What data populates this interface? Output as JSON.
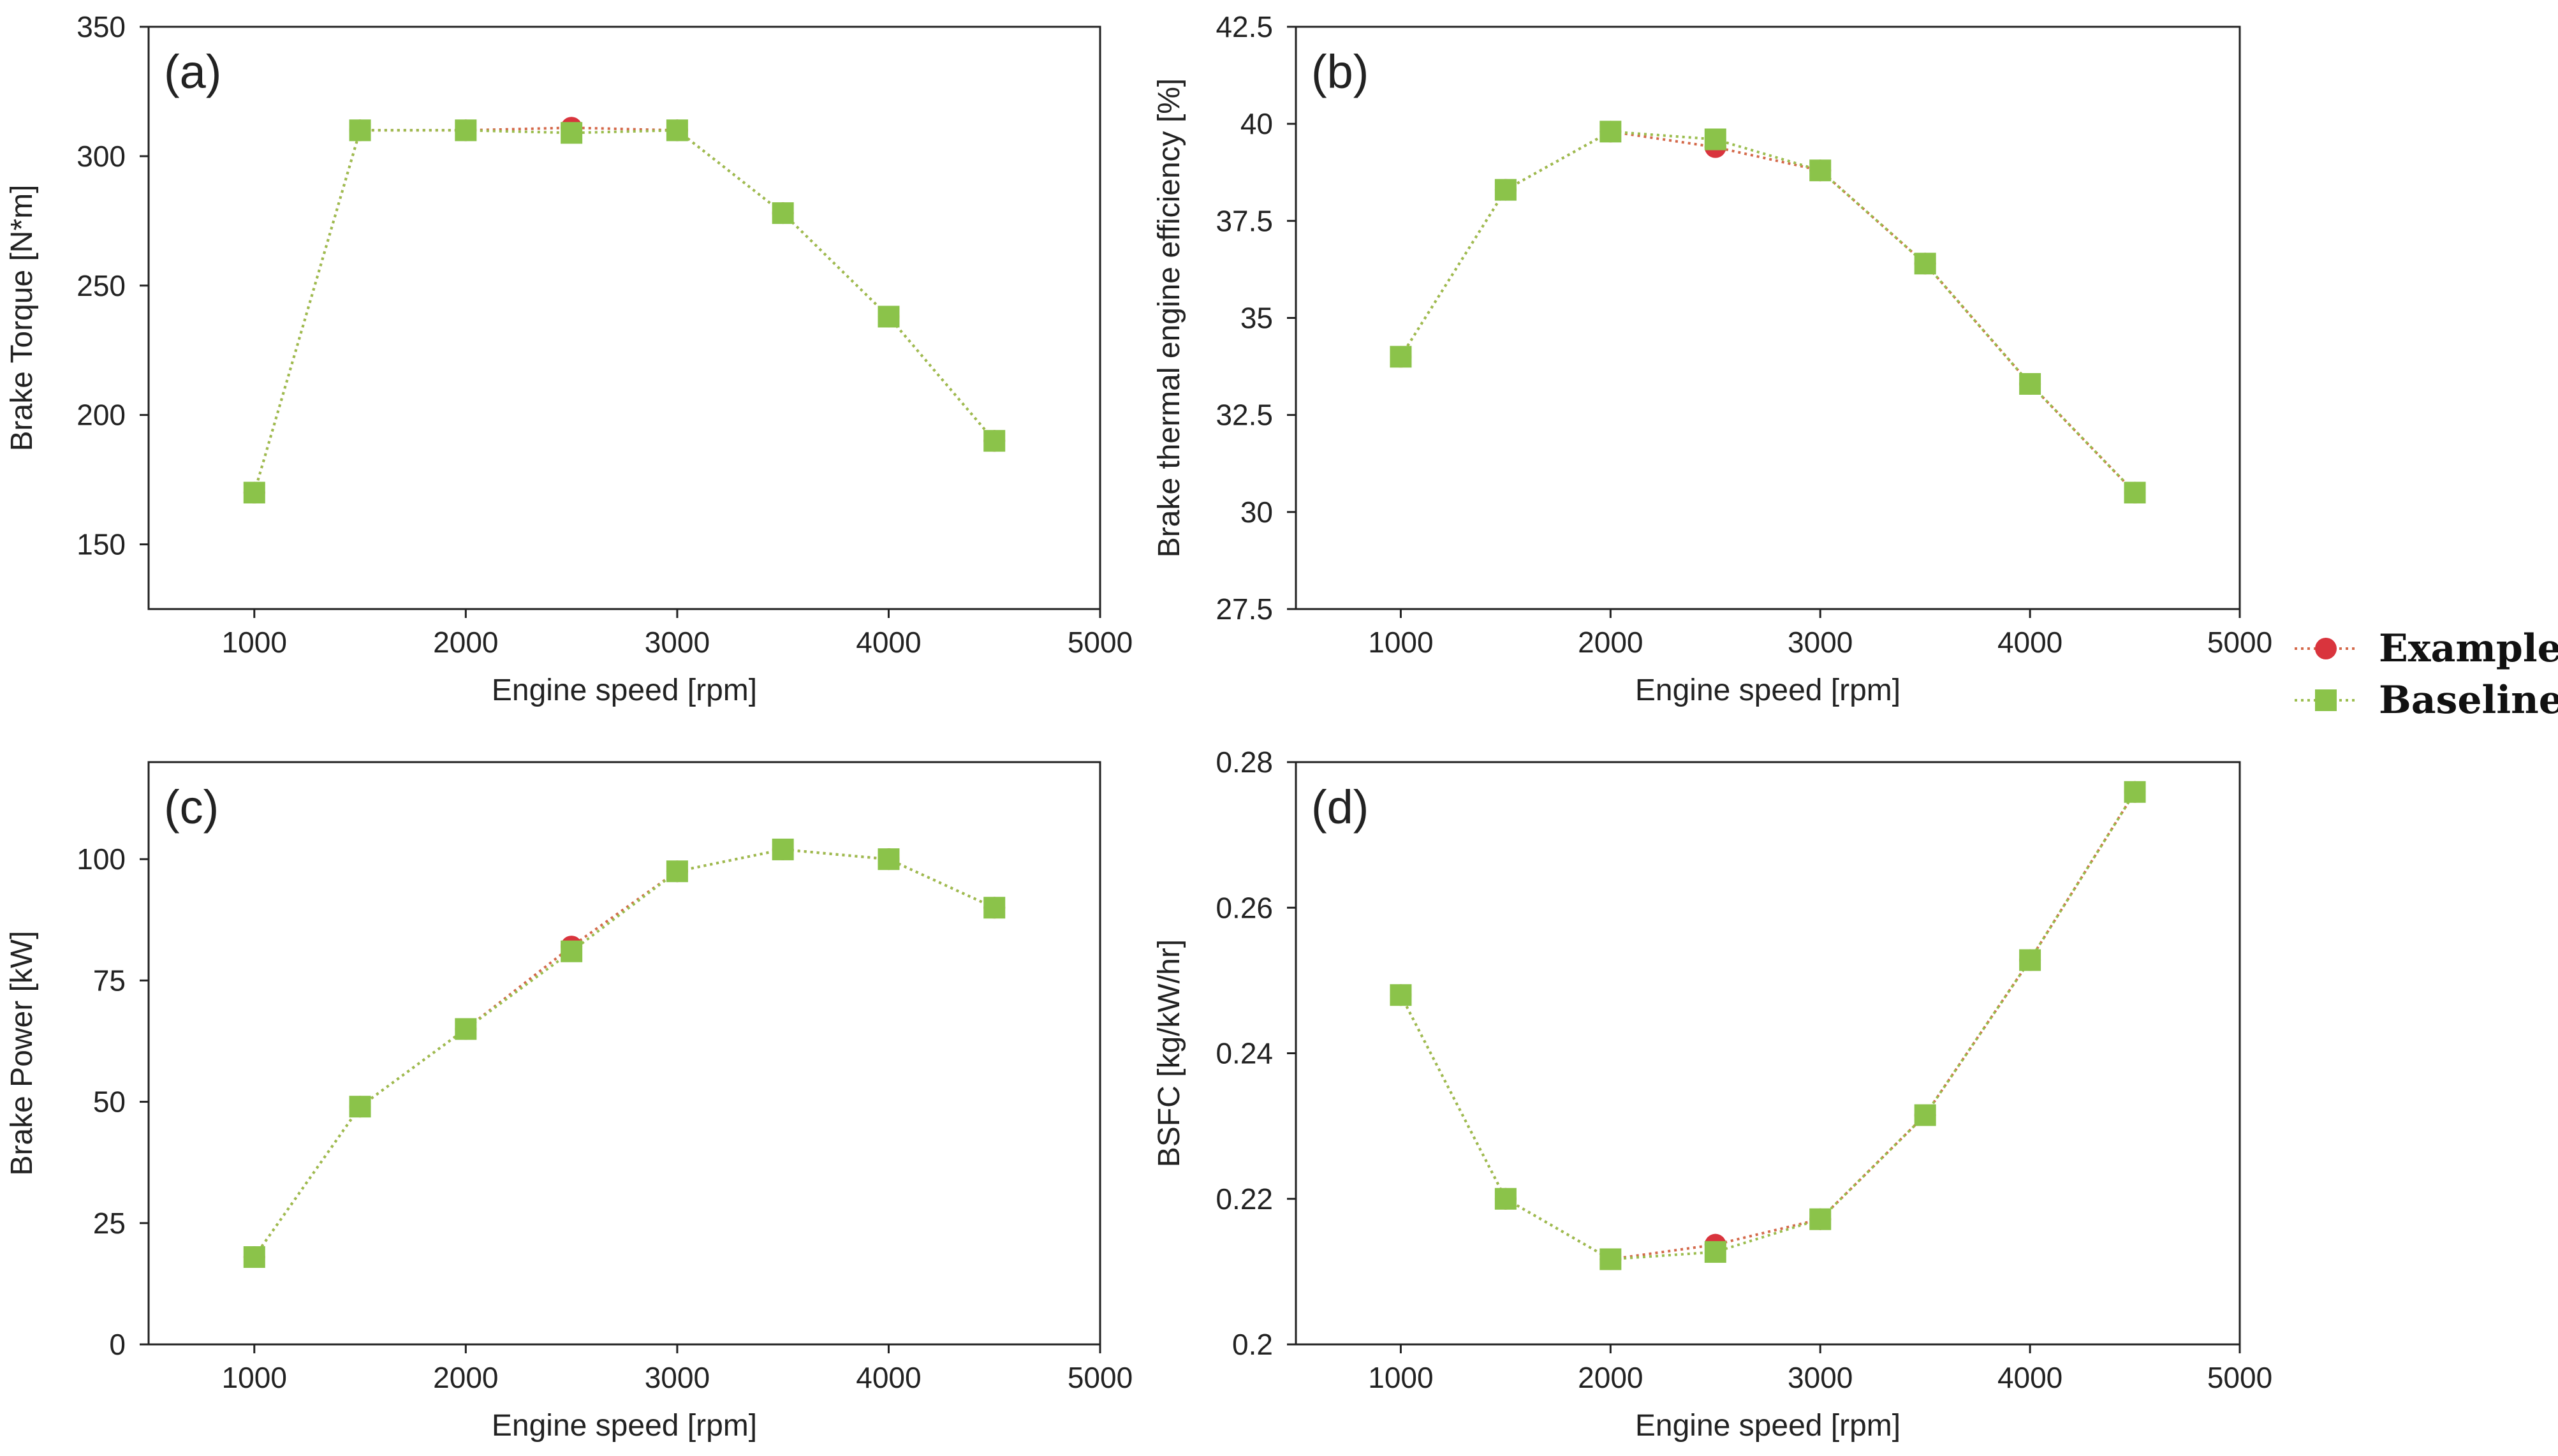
{
  "legend": {
    "example_label": "Example",
    "baseline_label": "Baseline"
  },
  "colors": {
    "example": "#d9343d",
    "baseline": "#8bc34a",
    "example_line": "#d4694a",
    "baseline_line": "#9bbd4e",
    "axis": "#222222"
  },
  "chart_data": [
    {
      "type": "line",
      "panel": "(a)",
      "title": "",
      "xlabel": "Engine speed [rpm]",
      "ylabel": "Brake Torque [N*m]",
      "xlim": [
        500,
        5000
      ],
      "ylim": [
        125,
        350
      ],
      "xticks": [
        1000,
        2000,
        3000,
        4000,
        5000
      ],
      "xtick_labels": [
        "1000",
        "2000",
        "3000",
        "4000",
        "5000"
      ],
      "yticks": [
        150,
        200,
        250,
        300,
        350
      ],
      "ytick_labels": [
        "150",
        "200",
        "250",
        "300",
        "350"
      ],
      "x": [
        1000,
        1500,
        2000,
        2500,
        3000,
        3500,
        4000,
        4500
      ],
      "series": [
        {
          "name": "Example",
          "values": [
            170,
            310,
            310,
            311,
            310,
            278,
            238,
            190
          ]
        },
        {
          "name": "Baseline",
          "values": [
            170,
            310,
            310,
            309,
            310,
            278,
            238,
            190
          ]
        }
      ]
    },
    {
      "type": "line",
      "panel": "(b)",
      "title": "",
      "xlabel": "Engine speed [rpm]",
      "ylabel": "Brake thermal engine efficiency [%]",
      "xlim": [
        500,
        5000
      ],
      "ylim": [
        27.5,
        42.5
      ],
      "xticks": [
        1000,
        2000,
        3000,
        4000,
        5000
      ],
      "xtick_labels": [
        "1000",
        "2000",
        "3000",
        "4000",
        "5000"
      ],
      "yticks": [
        27.5,
        30,
        32.5,
        35,
        37.5,
        40,
        42.5
      ],
      "ytick_labels": [
        "27.5",
        "30",
        "32.5",
        "35",
        "37.5",
        "40",
        "42.5"
      ],
      "x": [
        1000,
        1500,
        2000,
        2500,
        3000,
        3500,
        4000,
        4500
      ],
      "series": [
        {
          "name": "Example",
          "values": [
            34.0,
            38.3,
            39.8,
            39.4,
            38.8,
            36.4,
            33.3,
            30.5
          ]
        },
        {
          "name": "Baseline",
          "values": [
            34.0,
            38.3,
            39.8,
            39.6,
            38.8,
            36.4,
            33.3,
            30.5
          ]
        }
      ]
    },
    {
      "type": "line",
      "panel": "(c)",
      "title": "",
      "xlabel": "Engine speed [rpm]",
      "ylabel": "Brake Power [kW]",
      "xlim": [
        500,
        5000
      ],
      "ylim": [
        0,
        120
      ],
      "xticks": [
        1000,
        2000,
        3000,
        4000,
        5000
      ],
      "xtick_labels": [
        "1000",
        "2000",
        "3000",
        "4000",
        "5000"
      ],
      "yticks": [
        0,
        25,
        50,
        75,
        100
      ],
      "ytick_labels": [
        "0",
        "25",
        "50",
        "75",
        "100"
      ],
      "x": [
        1000,
        1500,
        2000,
        2500,
        3000,
        3500,
        4000,
        4500
      ],
      "series": [
        {
          "name": "Example",
          "values": [
            18,
            49,
            65,
            82,
            97.5,
            102,
            100,
            90
          ]
        },
        {
          "name": "Baseline",
          "values": [
            18,
            49,
            65,
            81,
            97.5,
            102,
            100,
            90
          ]
        }
      ]
    },
    {
      "type": "line",
      "panel": "(d)",
      "title": "",
      "xlabel": "Engine speed [rpm]",
      "ylabel": "BSFC [kg/kW/hr]",
      "xlim": [
        500,
        5000
      ],
      "ylim": [
        0.2,
        0.28
      ],
      "xticks": [
        1000,
        2000,
        3000,
        4000,
        5000
      ],
      "xtick_labels": [
        "1000",
        "2000",
        "3000",
        "4000",
        "5000"
      ],
      "yticks": [
        0.2,
        0.22,
        0.24,
        0.26,
        0.28
      ],
      "ytick_labels": [
        "0.2",
        "0.22",
        "0.24",
        "0.26",
        "0.28"
      ],
      "x": [
        1000,
        1500,
        2000,
        2500,
        3000,
        3500,
        4000,
        4500
      ],
      "series": [
        {
          "name": "Example",
          "values": [
            0.248,
            0.22,
            0.2117,
            0.2137,
            0.2172,
            0.2315,
            0.2528,
            0.2759
          ]
        },
        {
          "name": "Baseline",
          "values": [
            0.248,
            0.22,
            0.2117,
            0.2127,
            0.2172,
            0.2315,
            0.2528,
            0.2759
          ]
        }
      ]
    }
  ]
}
